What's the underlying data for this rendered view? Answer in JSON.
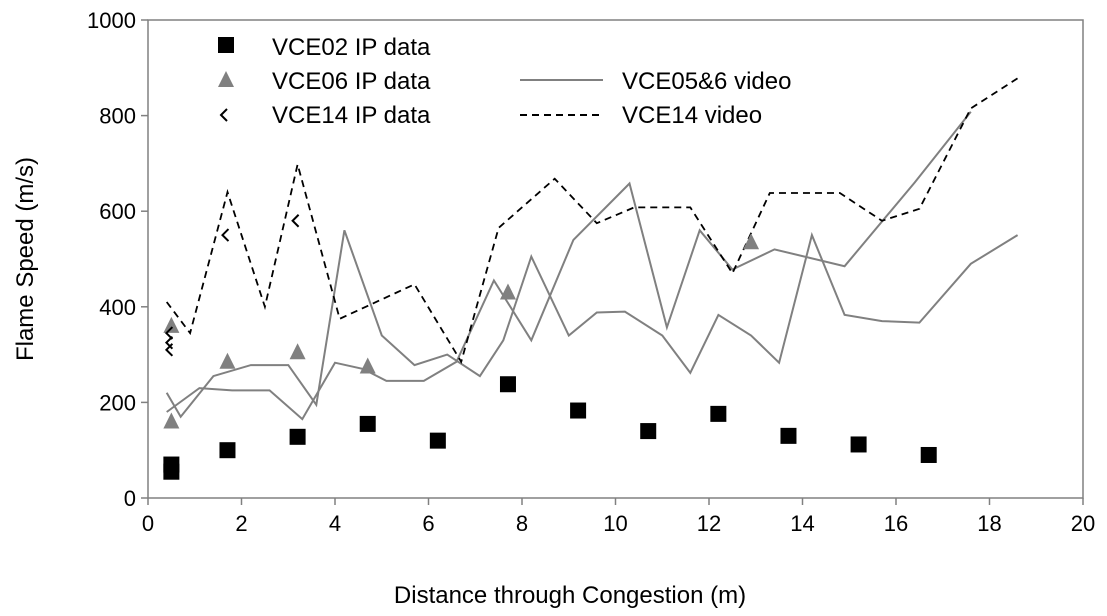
{
  "chart_data": {
    "type": "scatter",
    "title": "",
    "xlabel": "Distance through Congestion (m)",
    "ylabel": "Flame Speed (m/s)",
    "xlim": [
      0,
      20
    ],
    "ylim": [
      0,
      1000
    ],
    "xticks": [
      "0",
      "2",
      "4",
      "6",
      "8",
      "10",
      "12",
      "14",
      "16",
      "18",
      "20"
    ],
    "yticks": [
      "0",
      "200",
      "400",
      "600",
      "800",
      "1000"
    ],
    "grid": false,
    "legend_position": "top-left",
    "series": [
      {
        "name": "VCE02 IP data",
        "kind": "markers",
        "marker": "square",
        "color": "#000000",
        "points": [
          [
            0.5,
            55
          ],
          [
            0.5,
            70
          ],
          [
            1.7,
            100
          ],
          [
            3.2,
            128
          ],
          [
            4.7,
            155
          ],
          [
            6.2,
            120
          ],
          [
            7.7,
            238
          ],
          [
            9.2,
            183
          ],
          [
            10.7,
            140
          ],
          [
            12.2,
            176
          ],
          [
            13.7,
            130
          ],
          [
            15.2,
            112
          ],
          [
            16.7,
            90
          ]
        ]
      },
      {
        "name": "VCE06 IP data",
        "kind": "markers",
        "marker": "triangle",
        "color": "#808080",
        "points": [
          [
            0.5,
            160
          ],
          [
            0.5,
            360
          ],
          [
            1.7,
            285
          ],
          [
            3.2,
            305
          ],
          [
            4.7,
            275
          ],
          [
            7.7,
            430
          ],
          [
            12.9,
            535
          ]
        ]
      },
      {
        "name": "VCE14 IP data",
        "kind": "markers",
        "marker": "open-diamond",
        "color": "#000000",
        "points": [
          [
            0.5,
            310
          ],
          [
            0.5,
            325
          ],
          [
            0.5,
            345
          ],
          [
            1.7,
            550
          ],
          [
            3.2,
            580
          ]
        ]
      },
      {
        "name": "VCE05&6 video",
        "kind": "line",
        "style": "solid",
        "color": "#808080",
        "segments": [
          [
            [
              0.4,
              220
            ],
            [
              0.7,
              170
            ],
            [
              1.4,
              255
            ],
            [
              2.2,
              278
            ],
            [
              3.0,
              278
            ],
            [
              3.6,
              195
            ],
            [
              4.2,
              560
            ],
            [
              5.0,
              340
            ],
            [
              5.7,
              278
            ],
            [
              6.4,
              300
            ],
            [
              7.1,
              255
            ],
            [
              7.6,
              330
            ],
            [
              8.2,
              505
            ],
            [
              9.0,
              340
            ],
            [
              9.6,
              388
            ],
            [
              10.2,
              390
            ],
            [
              11.0,
              340
            ],
            [
              11.6,
              262
            ],
            [
              12.2,
              383
            ],
            [
              12.9,
              340
            ],
            [
              13.5,
              283
            ],
            [
              14.2,
              550
            ],
            [
              14.9,
              383
            ],
            [
              15.7,
              370
            ],
            [
              16.5,
              367
            ],
            [
              17.6,
              490
            ],
            [
              18.6,
              550
            ]
          ],
          [
            [
              0.4,
              180
            ],
            [
              1.1,
              230
            ],
            [
              1.8,
              225
            ],
            [
              2.6,
              225
            ],
            [
              3.3,
              165
            ],
            [
              4.0,
              283
            ],
            [
              4.6,
              270
            ],
            [
              5.1,
              245
            ],
            [
              5.9,
              245
            ],
            [
              6.6,
              285
            ],
            [
              7.4,
              455
            ],
            [
              8.2,
              330
            ],
            [
              9.1,
              540
            ],
            [
              10.3,
              658
            ],
            [
              11.1,
              357
            ],
            [
              11.8,
              560
            ],
            [
              12.5,
              478
            ],
            [
              13.4,
              520
            ],
            [
              14.9,
              485
            ],
            [
              16.4,
              660
            ],
            [
              17.6,
              808
            ]
          ]
        ]
      },
      {
        "name": "VCE14 video",
        "kind": "line",
        "style": "dashed",
        "color": "#000000",
        "segments": [
          [
            [
              0.4,
              410
            ],
            [
              0.9,
              345
            ],
            [
              1.7,
              640
            ],
            [
              2.5,
              400
            ],
            [
              3.2,
              698
            ],
            [
              4.1,
              375
            ],
            [
              5.7,
              447
            ],
            [
              6.7,
              285
            ],
            [
              7.5,
              565
            ],
            [
              8.7,
              668
            ],
            [
              9.6,
              575
            ],
            [
              10.4,
              608
            ],
            [
              11.6,
              608
            ],
            [
              12.5,
              470
            ],
            [
              13.3,
              638
            ],
            [
              14.8,
              638
            ],
            [
              15.7,
              580
            ],
            [
              16.5,
              605
            ],
            [
              17.6,
              815
            ],
            [
              18.6,
              878
            ]
          ]
        ]
      }
    ]
  }
}
